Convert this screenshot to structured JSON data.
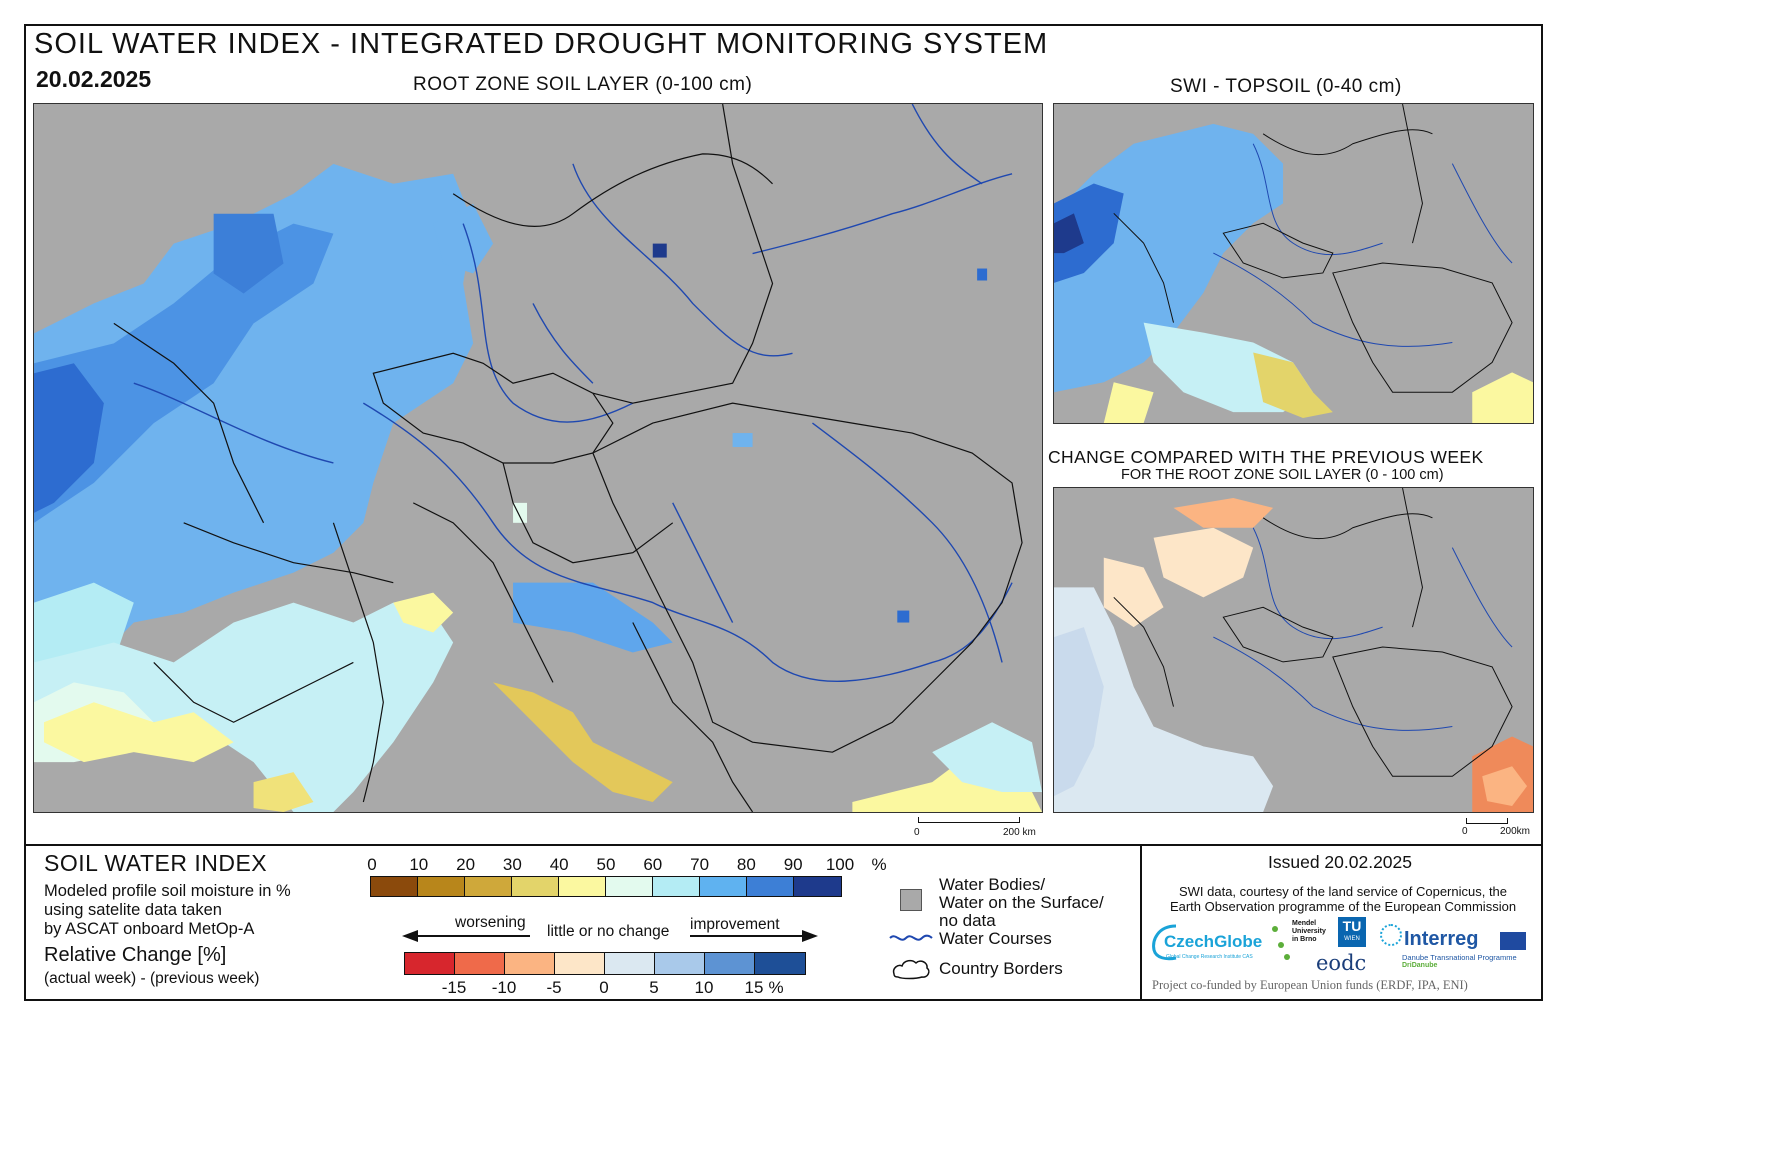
{
  "header": {
    "title": "SOIL WATER INDEX - INTEGRATED DROUGHT MONITORING SYSTEM",
    "date": "20.02.2025"
  },
  "maps": {
    "main_title": "ROOT ZONE SOIL LAYER (0-100 cm)",
    "topsoil_title": "SWI - TOPSOIL (0-40 cm)",
    "change_title": "CHANGE COMPARED WITH THE PREVIOUS WEEK",
    "change_subtitle": "FOR THE ROOT ZONE SOIL LAYER (0 - 100 cm)",
    "scale_zero": "0",
    "scale_km": "200 km",
    "scale_km_small": "200km"
  },
  "legend": {
    "swi_title": "SOIL WATER INDEX",
    "swi_desc_1": "Modeled profile soil moisture in %",
    "swi_desc_2": "using satelite data taken",
    "swi_desc_3": "by ASCAT onboard MetOp-A",
    "rel_title": "Relative Change [%]",
    "rel_sub": "(actual week) - (previous week)",
    "swi_ticks": [
      "0",
      "10",
      "20",
      "30",
      "40",
      "50",
      "60",
      "70",
      "80",
      "90",
      "100"
    ],
    "swi_unit": "%",
    "swi_colors": [
      "#8b4a0c",
      "#b8861b",
      "#cfa83a",
      "#e3d46a",
      "#fbf8a0",
      "#e3faee",
      "#b4ecf4",
      "#5fb2f0",
      "#3d7fd6",
      "#1e3a8c"
    ],
    "change_colors": [
      "#d7262d",
      "#ef6a4a",
      "#fbb482",
      "#fde6c8",
      "#dbe8f1",
      "#a9c9ea",
      "#5d93d3",
      "#1e4f97"
    ],
    "change_ticks": [
      "-15",
      "-10",
      "-5",
      "0",
      "5",
      "10",
      "15"
    ],
    "change_unit": "%",
    "worsening": "worsening",
    "little_change": "little or no change",
    "improvement": "improvement",
    "water_bodies_1": "Water Bodies/",
    "water_bodies_2": "Water on the Surface/",
    "water_bodies_3": "no data",
    "water_courses": "Water Courses",
    "country_borders": "Country Borders"
  },
  "credits": {
    "issued": "Issued 20.02.2025",
    "credit_1": "SWI data, courtesy of the land service of Copernicus, the",
    "credit_2": "Earth Observation programme of the European Commission",
    "czechglobe": "CzechGlobe",
    "czechglobe_sub": "Global Change Research Institute CAS",
    "mendel_1": "Mendel",
    "mendel_2": "University",
    "mendel_3": "in Brno",
    "tu": "TU",
    "wien": "WIEN",
    "eodc": "eodc",
    "interreg": "Interreg",
    "interreg_sub_1": "Danube Transnational Programme",
    "interreg_sub_2": "DriDanube",
    "cofunded": "Project co-funded by European Union funds (ERDF, IPA, ENI)"
  }
}
